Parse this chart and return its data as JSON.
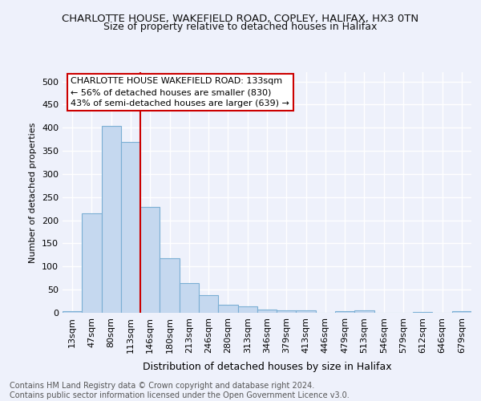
{
  "title": "CHARLOTTE HOUSE, WAKEFIELD ROAD, COPLEY, HALIFAX, HX3 0TN",
  "subtitle": "Size of property relative to detached houses in Halifax",
  "xlabel": "Distribution of detached houses by size in Halifax",
  "ylabel": "Number of detached properties",
  "categories": [
    "13sqm",
    "47sqm",
    "80sqm",
    "113sqm",
    "146sqm",
    "180sqm",
    "213sqm",
    "246sqm",
    "280sqm",
    "313sqm",
    "346sqm",
    "379sqm",
    "413sqm",
    "446sqm",
    "479sqm",
    "513sqm",
    "546sqm",
    "579sqm",
    "612sqm",
    "646sqm",
    "679sqm"
  ],
  "values": [
    4,
    215,
    403,
    370,
    228,
    118,
    64,
    39,
    18,
    14,
    7,
    5,
    5,
    0,
    4,
    6,
    0,
    0,
    1,
    0,
    3
  ],
  "bar_color": "#c5d8ef",
  "bar_edge_color": "#7bafd4",
  "vline_color": "#cc0000",
  "annotation_text": "CHARLOTTE HOUSE WAKEFIELD ROAD: 133sqm\n← 56% of detached houses are smaller (830)\n43% of semi-detached houses are larger (639) →",
  "annotation_box_color": "#ffffff",
  "annotation_box_edge": "#cc0000",
  "footnote": "Contains HM Land Registry data © Crown copyright and database right 2024.\nContains public sector information licensed under the Open Government Licence v3.0.",
  "ylim": [
    0,
    520
  ],
  "yticks": [
    0,
    50,
    100,
    150,
    200,
    250,
    300,
    350,
    400,
    450,
    500
  ],
  "bg_color": "#eef1fb",
  "grid_color": "#ffffff",
  "title_fontsize": 9.5,
  "subtitle_fontsize": 9,
  "xlabel_fontsize": 9,
  "ylabel_fontsize": 8,
  "tick_fontsize": 8,
  "footnote_fontsize": 7
}
